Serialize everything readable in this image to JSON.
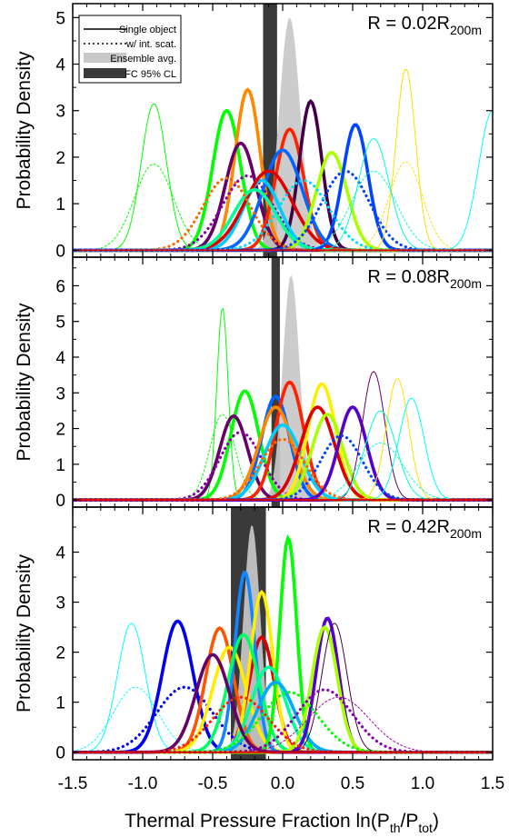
{
  "chart_data": {
    "type": "line",
    "xlabel": "Thermal Pressure Fraction ln(P",
    "xlabel_sub1": "th",
    "xlabel_mid": "/P",
    "xlabel_sub2": "tot",
    "xlabel_end": ")",
    "ylabel": "Probability Density",
    "xlim": [
      -1.5,
      1.5
    ],
    "xticks": [
      "-1.5",
      "-1.0",
      "-0.5",
      "0.0",
      "0.5",
      "1.0",
      "1.5"
    ],
    "legend": {
      "placement": "top-left",
      "entries": [
        "Single object",
        "w/ int. scat.",
        "Ensemble avg.",
        "FC 95% CL"
      ]
    },
    "panels": [
      {
        "label_main": "R = 0.02R",
        "label_sub": "200m",
        "ylim": [
          -0.15,
          5.3
        ],
        "yticks": [
          0,
          1,
          2,
          3,
          4,
          5
        ],
        "ensemble": {
          "mu": 0.05,
          "sigma": 0.075,
          "peak": 5.0
        },
        "fc_band": [
          -0.14,
          -0.04
        ],
        "curves": [
          {
            "color": "#00ff00",
            "style": "thin",
            "mu": -0.92,
            "sigma": 0.09,
            "peak": 3.15
          },
          {
            "color": "#00ff00",
            "style": "thindot",
            "mu": -0.92,
            "sigma": 0.14,
            "peak": 1.85
          },
          {
            "color": "#00ff00",
            "style": "thick",
            "mu": -0.4,
            "sigma": 0.1,
            "peak": 3.0
          },
          {
            "color": "#ff8800",
            "style": "thick",
            "mu": -0.25,
            "sigma": 0.09,
            "peak": 3.45
          },
          {
            "color": "#660066",
            "style": "thick",
            "mu": -0.3,
            "sigma": 0.11,
            "peak": 2.3
          },
          {
            "color": "#8800aa",
            "style": "dot",
            "mu": -0.25,
            "sigma": 0.18,
            "peak": 1.6
          },
          {
            "color": "#ff2200",
            "style": "thick",
            "mu": 0.05,
            "sigma": 0.1,
            "peak": 2.6
          },
          {
            "color": "#440044",
            "style": "thick",
            "mu": 0.2,
            "sigma": 0.08,
            "peak": 3.2
          },
          {
            "color": "#0066ff",
            "style": "thick",
            "mu": 0.0,
            "sigma": 0.14,
            "peak": 2.15
          },
          {
            "color": "#00ccff",
            "style": "thick",
            "mu": -0.15,
            "sigma": 0.13,
            "peak": 1.5
          },
          {
            "color": "#dd0000",
            "style": "thick",
            "mu": -0.1,
            "sigma": 0.17,
            "peak": 1.7
          },
          {
            "color": "#00ff99",
            "style": "thick",
            "mu": -0.2,
            "sigma": 0.15,
            "peak": 1.3
          },
          {
            "color": "#aaff00",
            "style": "thick",
            "mu": 0.35,
            "sigma": 0.11,
            "peak": 2.1
          },
          {
            "color": "#0044ff",
            "style": "thick",
            "mu": 0.52,
            "sigma": 0.09,
            "peak": 2.7
          },
          {
            "color": "#0044ff",
            "style": "dot",
            "mu": 0.45,
            "sigma": 0.17,
            "peak": 1.7
          },
          {
            "color": "#ff6600",
            "style": "dot",
            "mu": -0.4,
            "sigma": 0.17,
            "peak": 1.55
          },
          {
            "color": "#00ddff",
            "style": "dot",
            "mu": 0.15,
            "sigma": 0.18,
            "peak": 1.5
          },
          {
            "color": "#00ffcc",
            "style": "thin",
            "mu": 0.65,
            "sigma": 0.11,
            "peak": 2.4
          },
          {
            "color": "#ffdd00",
            "style": "thin",
            "mu": 0.88,
            "sigma": 0.07,
            "peak": 3.9
          },
          {
            "color": "#ffdd00",
            "style": "thindot",
            "mu": 0.88,
            "sigma": 0.12,
            "peak": 1.9
          },
          {
            "color": "#00ffff",
            "style": "thin",
            "mu": 1.5,
            "sigma": 0.1,
            "peak": 3.0
          },
          {
            "color": "#00ffcc",
            "style": "thindot",
            "mu": 0.65,
            "sigma": 0.16,
            "peak": 1.7
          }
        ]
      },
      {
        "label_main": "R = 0.08R",
        "label_sub": "200m",
        "ylim": [
          -0.2,
          6.8
        ],
        "yticks": [
          0,
          1,
          2,
          3,
          4,
          5,
          6
        ],
        "ensemble": {
          "mu": 0.06,
          "sigma": 0.06,
          "peak": 6.3
        },
        "fc_band": [
          -0.08,
          -0.02
        ],
        "curves": [
          {
            "color": "#00ff00",
            "style": "thin",
            "mu": -0.43,
            "sigma": 0.04,
            "peak": 5.4
          },
          {
            "color": "#00ff00",
            "style": "thindot",
            "mu": -0.43,
            "sigma": 0.09,
            "peak": 2.4
          },
          {
            "color": "#00ff00",
            "style": "thick",
            "mu": -0.27,
            "sigma": 0.1,
            "peak": 3.05
          },
          {
            "color": "#660066",
            "style": "thick",
            "mu": -0.35,
            "sigma": 0.1,
            "peak": 2.35
          },
          {
            "color": "#8800aa",
            "style": "dot",
            "mu": -0.3,
            "sigma": 0.15,
            "peak": 1.9
          },
          {
            "color": "#0066ff",
            "style": "thick",
            "mu": -0.05,
            "sigma": 0.1,
            "peak": 2.9
          },
          {
            "color": "#ff2200",
            "style": "thick",
            "mu": 0.05,
            "sigma": 0.1,
            "peak": 3.3
          },
          {
            "color": "#ff8800",
            "style": "thick",
            "mu": -0.05,
            "sigma": 0.12,
            "peak": 2.6
          },
          {
            "color": "#00ccff",
            "style": "thick",
            "mu": 0.0,
            "sigma": 0.13,
            "peak": 2.1
          },
          {
            "color": "#ffee00",
            "style": "thick",
            "mu": 0.28,
            "sigma": 0.1,
            "peak": 3.25
          },
          {
            "color": "#dd0000",
            "style": "thick",
            "mu": 0.25,
            "sigma": 0.12,
            "peak": 2.6
          },
          {
            "color": "#aaff00",
            "style": "thick",
            "mu": 0.32,
            "sigma": 0.11,
            "peak": 2.4
          },
          {
            "color": "#5500cc",
            "style": "thick",
            "mu": 0.5,
            "sigma": 0.1,
            "peak": 2.6
          },
          {
            "color": "#0044ff",
            "style": "dot",
            "mu": 0.42,
            "sigma": 0.15,
            "peak": 1.8
          },
          {
            "color": "#660066",
            "style": "thin",
            "mu": 0.65,
            "sigma": 0.08,
            "peak": 3.6
          },
          {
            "color": "#ffdd00",
            "style": "thin",
            "mu": 0.82,
            "sigma": 0.08,
            "peak": 3.4
          },
          {
            "color": "#00ffff",
            "style": "thin",
            "mu": 0.92,
            "sigma": 0.09,
            "peak": 2.85
          },
          {
            "color": "#00ffcc",
            "style": "thin",
            "mu": 0.7,
            "sigma": 0.11,
            "peak": 2.5
          },
          {
            "color": "#00ffcc",
            "style": "thindot",
            "mu": 0.7,
            "sigma": 0.16,
            "peak": 1.6
          },
          {
            "color": "#ff6600",
            "style": "dot",
            "mu": 0.0,
            "sigma": 0.16,
            "peak": 1.7
          }
        ]
      },
      {
        "label_main": "R = 0.42R",
        "label_sub": "200m",
        "ylim": [
          -0.15,
          4.9
        ],
        "yticks": [
          0,
          1,
          2,
          3,
          4
        ],
        "ensemble": {
          "mu": -0.22,
          "sigma": 0.06,
          "peak": 4.55
        },
        "fc_band": [
          -0.37,
          -0.12
        ],
        "curves": [
          {
            "color": "#00ffff",
            "style": "thin",
            "mu": -1.08,
            "sigma": 0.1,
            "peak": 2.58
          },
          {
            "color": "#00ffff",
            "style": "thindot",
            "mu": -1.05,
            "sigma": 0.16,
            "peak": 1.3
          },
          {
            "color": "#0000ee",
            "style": "thick",
            "mu": -0.75,
            "sigma": 0.11,
            "peak": 2.62
          },
          {
            "color": "#0000ee",
            "style": "dot",
            "mu": -0.7,
            "sigma": 0.2,
            "peak": 1.3
          },
          {
            "color": "#ff5500",
            "style": "thick",
            "mu": -0.45,
            "sigma": 0.1,
            "peak": 2.48
          },
          {
            "color": "#ffee00",
            "style": "thick",
            "mu": -0.38,
            "sigma": 0.12,
            "peak": 2.1
          },
          {
            "color": "#dd0000",
            "style": "thick",
            "mu": -0.15,
            "sigma": 0.09,
            "peak": 2.3
          },
          {
            "color": "#1188ff",
            "style": "thick",
            "mu": -0.27,
            "sigma": 0.07,
            "peak": 3.6
          },
          {
            "color": "#ffee00",
            "style": "thick",
            "mu": -0.15,
            "sigma": 0.08,
            "peak": 3.2
          },
          {
            "color": "#00ff66",
            "style": "thick",
            "mu": -0.28,
            "sigma": 0.11,
            "peak": 2.35
          },
          {
            "color": "#00ff00",
            "style": "thick",
            "mu": 0.04,
            "sigma": 0.06,
            "peak": 4.28
          },
          {
            "color": "#00ff99",
            "style": "thick",
            "mu": -0.1,
            "sigma": 0.12,
            "peak": 1.7
          },
          {
            "color": "#00aaff",
            "style": "thick",
            "mu": -0.05,
            "sigma": 0.13,
            "peak": 1.4
          },
          {
            "color": "#5500cc",
            "style": "thick",
            "mu": 0.32,
            "sigma": 0.08,
            "peak": 2.68
          },
          {
            "color": "#aaff00",
            "style": "thick",
            "mu": 0.3,
            "sigma": 0.09,
            "peak": 2.5
          },
          {
            "color": "#440044",
            "style": "thin",
            "mu": 0.37,
            "sigma": 0.09,
            "peak": 2.58
          },
          {
            "color": "#660066",
            "style": "thick",
            "mu": -0.5,
            "sigma": 0.12,
            "peak": 1.95
          },
          {
            "color": "#ff2200",
            "style": "dot",
            "mu": -0.3,
            "sigma": 0.2,
            "peak": 1.1
          },
          {
            "color": "#00ff00",
            "style": "dot",
            "mu": 0.05,
            "sigma": 0.2,
            "peak": 1.2
          },
          {
            "color": "#8800aa",
            "style": "dot",
            "mu": 0.3,
            "sigma": 0.2,
            "peak": 1.25
          },
          {
            "color": "#aa00aa",
            "style": "thindot",
            "mu": 0.4,
            "sigma": 0.22,
            "peak": 1.1
          }
        ]
      }
    ]
  }
}
